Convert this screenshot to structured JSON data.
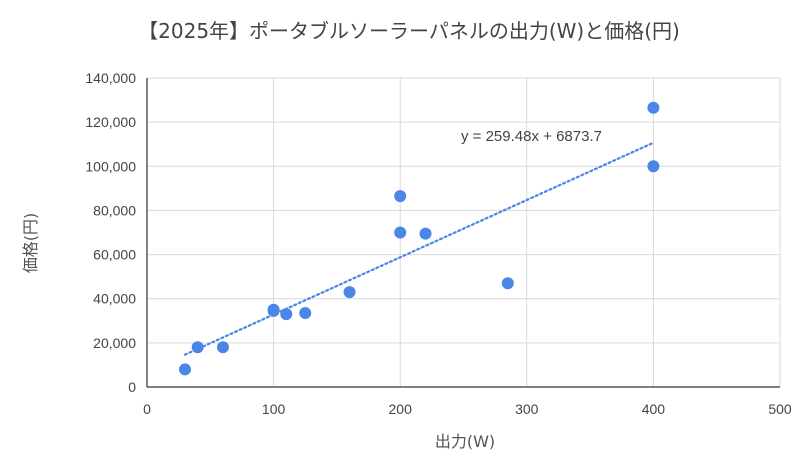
{
  "chart_data": {
    "type": "scatter",
    "title": "【2025年】ポータブルソーラーパネルの出力(W)と価格(円)",
    "xlabel": "出力(W)",
    "ylabel": "価格(円)",
    "xlim": [
      0,
      500
    ],
    "ylim": [
      0,
      140000
    ],
    "x_ticks": [
      0,
      100,
      200,
      300,
      400,
      500
    ],
    "y_ticks": [
      0,
      20000,
      40000,
      60000,
      80000,
      100000,
      120000,
      140000
    ],
    "x_tick_labels": [
      "0",
      "100",
      "200",
      "300",
      "400",
      "500"
    ],
    "y_tick_labels": [
      "0",
      "20,000",
      "40,000",
      "60,000",
      "80,000",
      "100,000",
      "120,000",
      "140,000"
    ],
    "grid": true,
    "legend": "none",
    "points": [
      {
        "x": 30,
        "y": 8000
      },
      {
        "x": 40,
        "y": 18000
      },
      {
        "x": 60,
        "y": 18000
      },
      {
        "x": 100,
        "y": 35000
      },
      {
        "x": 100,
        "y": 34500
      },
      {
        "x": 110,
        "y": 33000
      },
      {
        "x": 125,
        "y": 33500
      },
      {
        "x": 160,
        "y": 43000
      },
      {
        "x": 200,
        "y": 86500
      },
      {
        "x": 200,
        "y": 70000
      },
      {
        "x": 220,
        "y": 69500
      },
      {
        "x": 285,
        "y": 47000
      },
      {
        "x": 400,
        "y": 126500
      },
      {
        "x": 400,
        "y": 100000
      }
    ],
    "trendline": {
      "type": "linear",
      "slope": 259.48,
      "intercept": 6873.7,
      "x_range": [
        30,
        400
      ],
      "equation_label": "y = 259.48x + 6873.7"
    },
    "colors": {
      "points": "#4a86e8",
      "trendline": "#4a86e8",
      "grid": "#d9d9d9",
      "axis": "#333333"
    }
  }
}
